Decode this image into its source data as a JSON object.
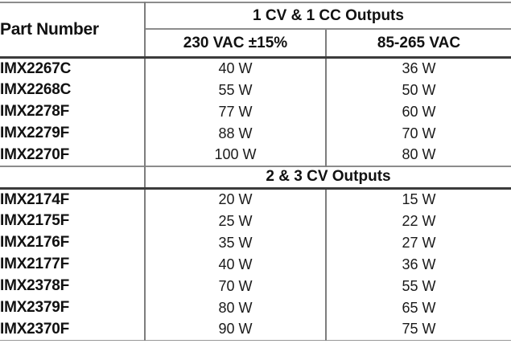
{
  "table": {
    "part_number_header": "Part Number",
    "section1": {
      "title": "1 CV & 1 CC Outputs",
      "col_230": "230 VAC ±15%",
      "col_85": "85-265 VAC",
      "rows": [
        {
          "part": "IMX2267C",
          "w230": "40 W",
          "w85": "36 W"
        },
        {
          "part": "IMX2268C",
          "w230": "55 W",
          "w85": "50 W"
        },
        {
          "part": "IMX2278F",
          "w230": "77 W",
          "w85": "60 W"
        },
        {
          "part": "IMX2279F",
          "w230": "88 W",
          "w85": "70 W"
        },
        {
          "part": "IMX2270F",
          "w230": "100 W",
          "w85": "80 W"
        }
      ]
    },
    "section2": {
      "title": "2 & 3 CV Outputs",
      "rows": [
        {
          "part": "IMX2174F",
          "w230": "20 W",
          "w85": "15 W"
        },
        {
          "part": "IMX2175F",
          "w230": "25 W",
          "w85": "22 W"
        },
        {
          "part": "IMX2176F",
          "w230": "35 W",
          "w85": "27 W"
        },
        {
          "part": "IMX2177F",
          "w230": "40 W",
          "w85": "36 W"
        },
        {
          "part": "IMX2378F",
          "w230": "70 W",
          "w85": "55 W"
        },
        {
          "part": "IMX2379F",
          "w230": "80 W",
          "w85": "65 W"
        },
        {
          "part": "IMX2370F",
          "w230": "90 W",
          "w85": "75 W"
        }
      ]
    },
    "colors": {
      "grid_gray": "#8c8c8c",
      "grid_dark": "#3c3c3c",
      "bottom_rule": "#989898",
      "text": "#111111"
    }
  }
}
